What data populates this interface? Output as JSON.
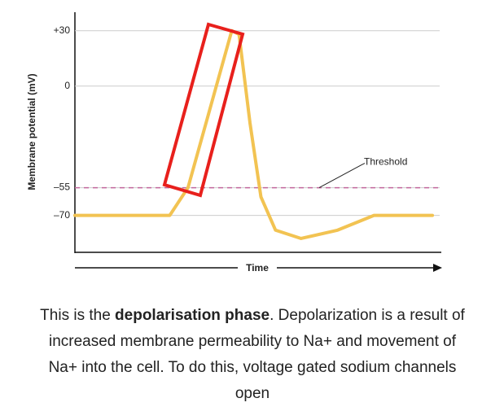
{
  "chart_data": {
    "type": "line",
    "ylabel": "Membrane potential (mV)",
    "xlabel": "Time",
    "x": [
      0,
      26,
      31,
      43,
      45,
      48,
      51,
      55,
      62,
      72,
      82,
      98
    ],
    "values": [
      -70,
      -70,
      -55,
      30,
      28,
      -20,
      -60,
      -78,
      -82.5,
      -78,
      -70,
      -70
    ],
    "color": "#f2c352",
    "xlim": [
      0,
      100
    ],
    "ylim": [
      -90,
      40
    ],
    "yticks": [
      {
        "value": 30,
        "label": "+30"
      },
      0,
      {
        "value": -55,
        "label": "–55"
      },
      {
        "value": -70,
        "label": "–70"
      }
    ],
    "grid": true,
    "threshold": -55,
    "annotation": "Threshold"
  },
  "caption": {
    "before": "This is the ",
    "bold": "depolarisation phase",
    "after": ". Depolarization is a result of increased membrane permeability to Na+ and movement of Na+ into the cell. To do this, voltage gated sodium channels open"
  }
}
